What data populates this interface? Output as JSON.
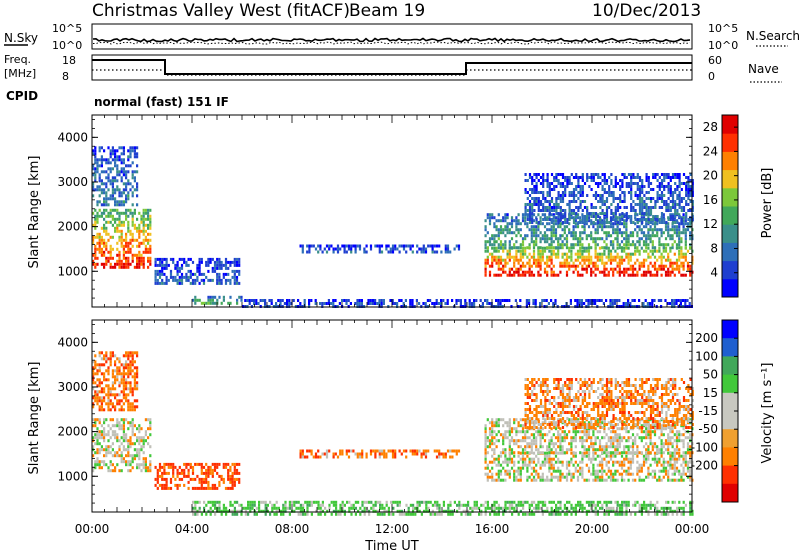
{
  "header": {
    "title": "Christmas Valley West (fitACF)",
    "beam": "Beam 19",
    "date": "10/Dec/2013"
  },
  "aux_panels": {
    "nsky_label": "N.Sky",
    "nsearch_label": "N.Search",
    "noise_tick_top": "10^5",
    "noise_tick_bottom": "10^0",
    "freq_label": "Freq.",
    "freq_units": "[MHz]",
    "freq_ticks": [
      "18",
      "8"
    ],
    "nave_label": "Nave",
    "nave_ticks": [
      "60",
      "0"
    ],
    "cpid_label": "CPID",
    "cpid_value": "normal (fast) 151 IF"
  },
  "colors": {
    "power_scale": [
      "#0000ff",
      "#1f3fd0",
      "#2e6fb8",
      "#3a8f8a",
      "#41a85a",
      "#7cc83a",
      "#f0c020",
      "#ff8000",
      "#ff3000",
      "#e00000"
    ],
    "velocity_scale": [
      "#e00000",
      "#ff3000",
      "#ff8000",
      "#f0a030",
      "#c8c8c0",
      "#c8c8c0",
      "#41c83a",
      "#41a85a",
      "#1f5fd0",
      "#0000ff"
    ],
    "ground_scatter": "#c0c0b8"
  },
  "chart_data": [
    {
      "type": "heatmap",
      "name": "power",
      "ylabel": "Slant Range [km]",
      "ylim": [
        200,
        4500
      ],
      "y_ticks": [
        1000,
        2000,
        3000,
        4000
      ],
      "xlim_hours": [
        0,
        24
      ],
      "colorbar_label": "Power [dB]",
      "colorbar_ticks": [
        4,
        8,
        12,
        16,
        20,
        24,
        28
      ],
      "colorbar_range": [
        0,
        30
      ],
      "regions": [
        {
          "t_start": 0.0,
          "t_end": 2.3,
          "r_low": 1100,
          "r_high": 2400,
          "level": 24
        },
        {
          "t_start": 0.0,
          "t_end": 1.8,
          "r_low": 2500,
          "r_high": 3800,
          "level": 8
        },
        {
          "t_start": 2.5,
          "t_end": 5.9,
          "r_low": 700,
          "r_high": 1300,
          "level": 6
        },
        {
          "t_start": 4.0,
          "t_end": 6.0,
          "r_low": 250,
          "r_high": 450,
          "level": 14
        },
        {
          "t_start": 6.0,
          "t_end": 24.0,
          "r_low": 180,
          "r_high": 380,
          "level": 5
        },
        {
          "t_start": 8.3,
          "t_end": 14.7,
          "r_low": 1450,
          "r_high": 1600,
          "level": 6
        },
        {
          "t_start": 15.7,
          "t_end": 24.0,
          "r_low": 900,
          "r_high": 1550,
          "level": 26
        },
        {
          "t_start": 15.7,
          "t_end": 24.0,
          "r_low": 1550,
          "r_high": 2300,
          "level": 12
        },
        {
          "t_start": 17.3,
          "t_end": 24.0,
          "r_low": 2100,
          "r_high": 3200,
          "level": 7
        }
      ]
    },
    {
      "type": "heatmap",
      "name": "velocity",
      "ylabel": "Slant Range [km]",
      "xlabel": "Time UT",
      "ylim": [
        200,
        4500
      ],
      "y_ticks": [
        1000,
        2000,
        3000,
        4000
      ],
      "x_ticks": [
        "00:00",
        "04:00",
        "08:00",
        "12:00",
        "16:00",
        "20:00",
        "00:00"
      ],
      "xlim_hours": [
        0,
        24
      ],
      "colorbar_label": "Velocity [m s⁻¹]",
      "colorbar_ticks": [
        200,
        100,
        50,
        15,
        -15,
        -50,
        -100,
        -200
      ],
      "regions": [
        {
          "t_start": 0.0,
          "t_end": 2.3,
          "r_low": 1100,
          "r_high": 2300,
          "level": 0
        },
        {
          "t_start": 0.0,
          "t_end": 1.8,
          "r_low": 2500,
          "r_high": 3800,
          "level": -40
        },
        {
          "t_start": 2.5,
          "t_end": 5.9,
          "r_low": 700,
          "r_high": 1300,
          "level": -60
        },
        {
          "t_start": 4.0,
          "t_end": 24.0,
          "r_low": 180,
          "r_high": 450,
          "level": 30
        },
        {
          "t_start": 8.3,
          "t_end": 14.7,
          "r_low": 1450,
          "r_high": 1600,
          "level": -40
        },
        {
          "t_start": 15.7,
          "t_end": 24.0,
          "r_low": 900,
          "r_high": 1550,
          "level": 0
        },
        {
          "t_start": 15.7,
          "t_end": 24.0,
          "r_low": 1550,
          "r_high": 2300,
          "level": 0
        },
        {
          "t_start": 17.3,
          "t_end": 24.0,
          "r_low": 2100,
          "r_high": 3200,
          "level": -30
        }
      ]
    }
  ]
}
